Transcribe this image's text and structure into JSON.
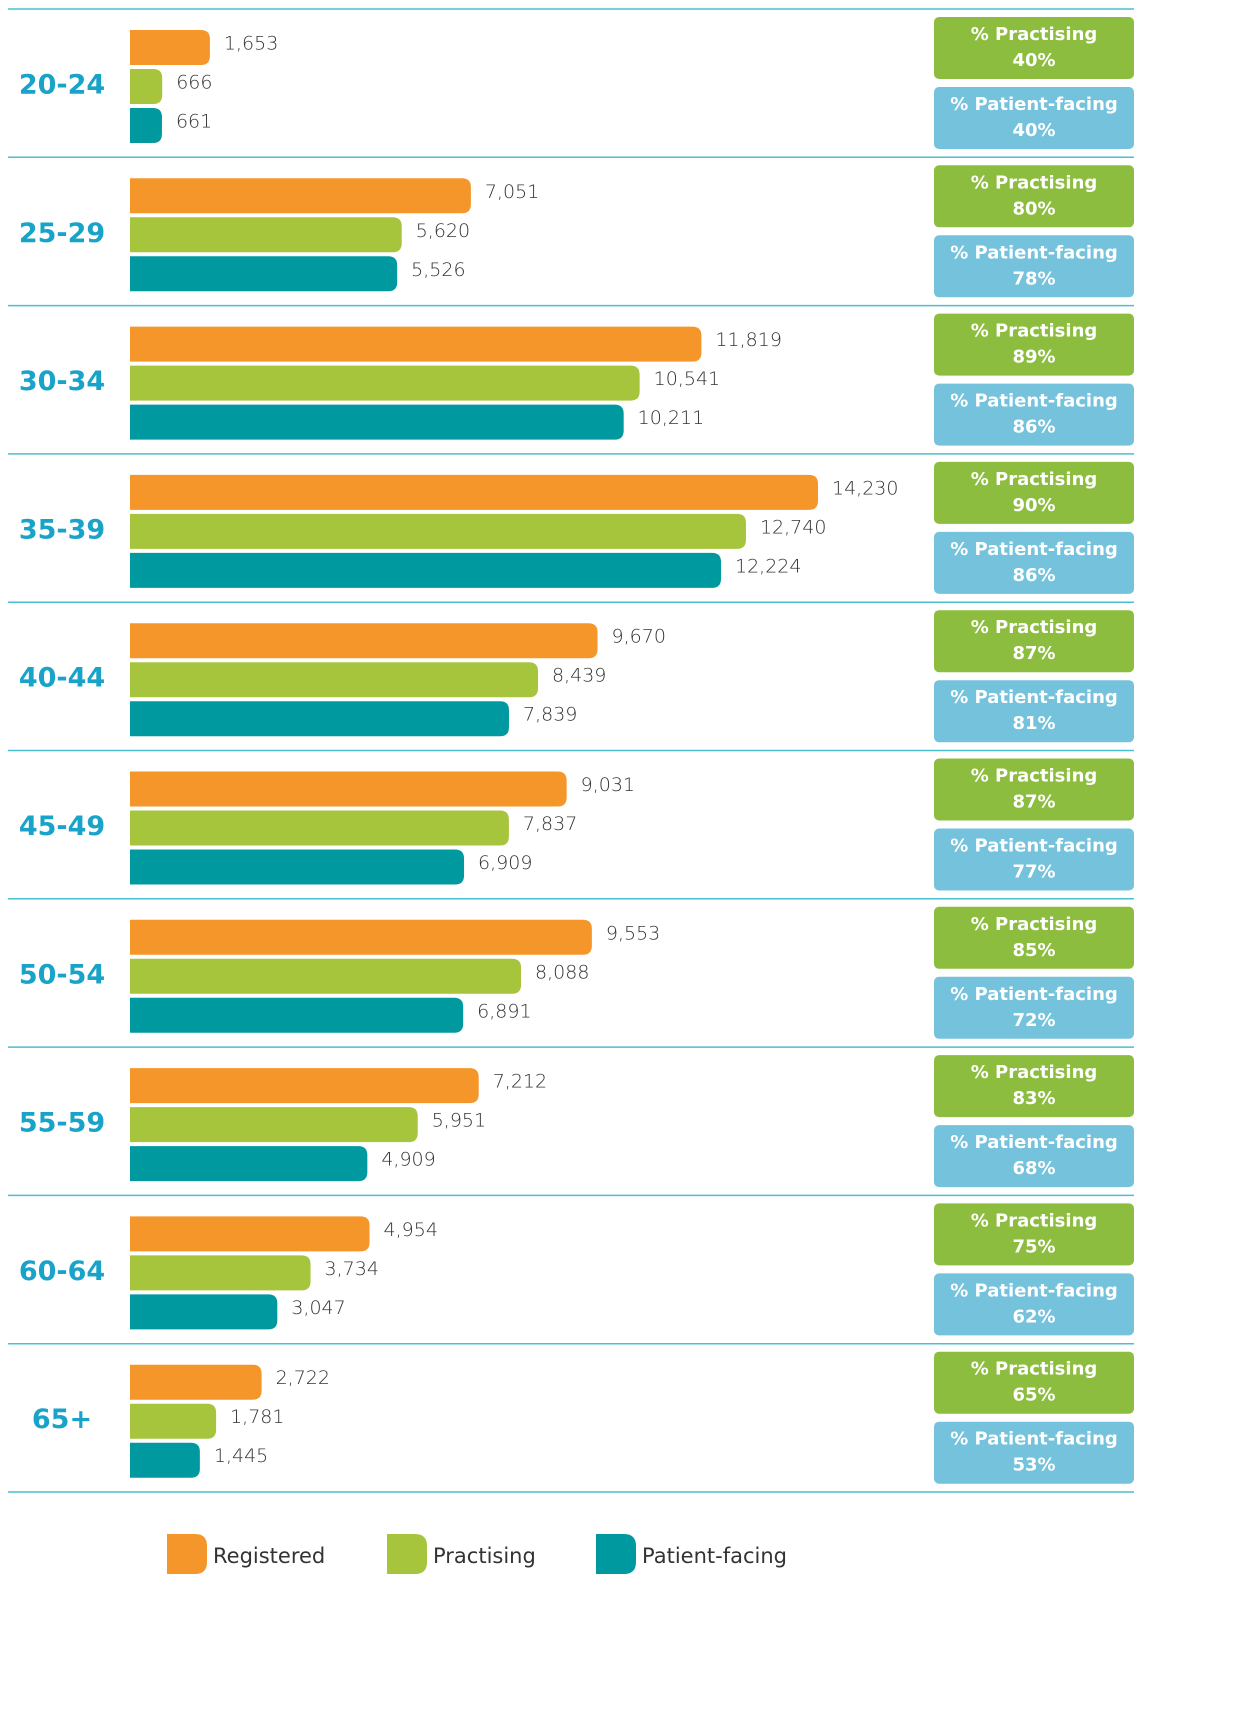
{
  "chart_data": {
    "type": "bar",
    "orientation": "horizontal",
    "categories": [
      "20-24",
      "25-29",
      "30-34",
      "35-39",
      "40-44",
      "45-49",
      "50-54",
      "55-59",
      "60-64",
      "65+"
    ],
    "series": [
      {
        "name": "Registered",
        "color": "#f5962a",
        "values": [
          1653,
          7051,
          11819,
          14230,
          9670,
          9031,
          9553,
          7212,
          4954,
          2722
        ],
        "value_labels": [
          "1,653",
          "7,051",
          "11,819",
          "14,230",
          "9,670",
          "9,031",
          "9,553",
          "7,212",
          "4,954",
          "2,722"
        ]
      },
      {
        "name": "Practising",
        "color": "#a6c43c",
        "values": [
          666,
          5620,
          10541,
          12740,
          8439,
          7837,
          8088,
          5951,
          3734,
          1781
        ],
        "value_labels": [
          "666",
          "5,620",
          "10,541",
          "12,740",
          "8,439",
          "7,837",
          "8,088",
          "5,951",
          "3,734",
          "1,781"
        ]
      },
      {
        "name": "Patient-facing",
        "color": "#0099a0",
        "values": [
          661,
          5526,
          10211,
          12224,
          7839,
          6909,
          6891,
          4909,
          3047,
          1445
        ],
        "value_labels": [
          "661",
          "5,526",
          "10,211",
          "12,224",
          "7,839",
          "6,909",
          "6,891",
          "4,909",
          "3,047",
          "1,445"
        ]
      }
    ],
    "annotations": [
      {
        "label": "% Practising",
        "color": "#8dbd3f",
        "values": [
          40,
          80,
          89,
          90,
          87,
          87,
          85,
          83,
          75,
          65
        ],
        "value_labels": [
          "40%",
          "80%",
          "89%",
          "90%",
          "87%",
          "87%",
          "85%",
          "83%",
          "75%",
          "65%"
        ]
      },
      {
        "label": "% Patient-facing",
        "color": "#74c2dc",
        "values": [
          40,
          78,
          86,
          86,
          81,
          77,
          72,
          68,
          62,
          53
        ],
        "value_labels": [
          "40%",
          "78%",
          "86%",
          "86%",
          "81%",
          "77%",
          "72%",
          "68%",
          "62%",
          "53%"
        ]
      }
    ]
  }
}
